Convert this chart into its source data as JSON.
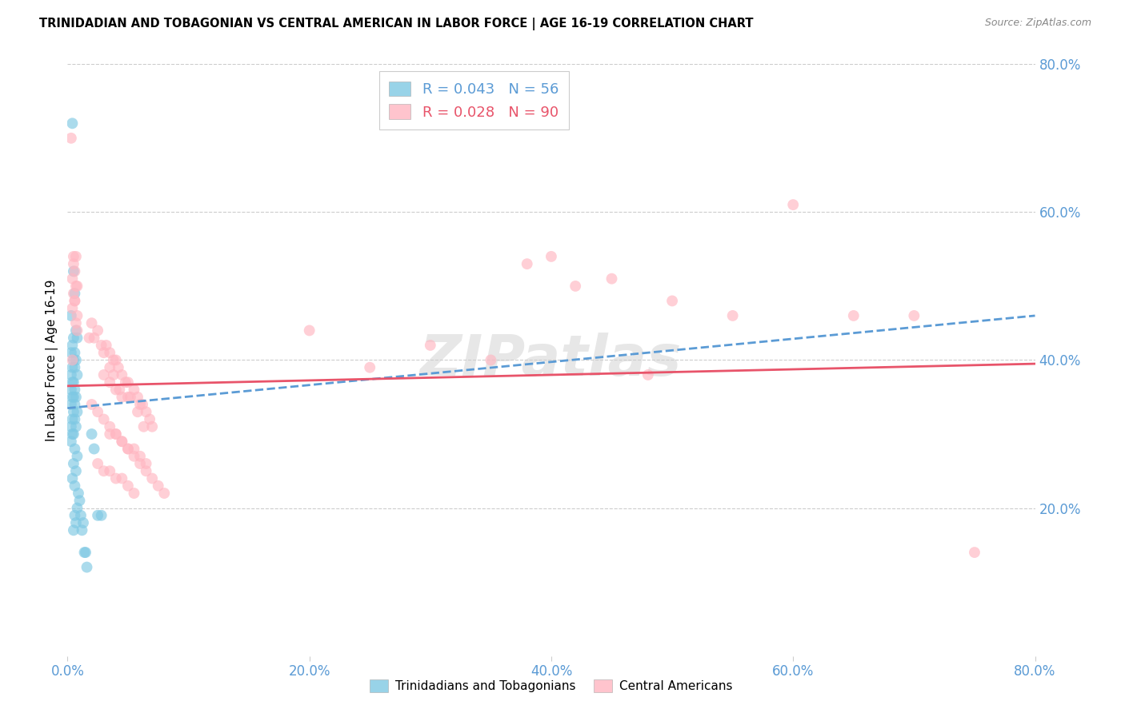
{
  "title": "TRINIDADIAN AND TOBAGONIAN VS CENTRAL AMERICAN IN LABOR FORCE | AGE 16-19 CORRELATION CHART",
  "source": "Source: ZipAtlas.com",
  "ylabel": "In Labor Force | Age 16-19",
  "xlim": [
    0.0,
    0.8
  ],
  "ylim": [
    0.0,
    0.8
  ],
  "xtick_labels": [
    "0.0%",
    "20.0%",
    "40.0%",
    "60.0%",
    "80.0%"
  ],
  "xtick_values": [
    0.0,
    0.2,
    0.4,
    0.6,
    0.8
  ],
  "ytick_labels_right": [
    "80.0%",
    "60.0%",
    "40.0%",
    "20.0%"
  ],
  "ytick_values_right": [
    0.8,
    0.6,
    0.4,
    0.2
  ],
  "grid_color": "#cccccc",
  "background_color": "#ffffff",
  "blue_color": "#7ec8e3",
  "pink_color": "#ffb6c1",
  "blue_line_color": "#5b9bd5",
  "pink_line_color": "#e8546a",
  "blue_R": 0.043,
  "blue_N": 56,
  "pink_R": 0.028,
  "pink_N": 90,
  "blue_points_x": [
    0.004,
    0.005,
    0.006,
    0.003,
    0.007,
    0.005,
    0.008,
    0.004,
    0.006,
    0.003,
    0.007,
    0.005,
    0.004,
    0.006,
    0.003,
    0.008,
    0.005,
    0.004,
    0.006,
    0.003,
    0.007,
    0.005,
    0.004,
    0.006,
    0.003,
    0.008,
    0.005,
    0.004,
    0.006,
    0.003,
    0.007,
    0.005,
    0.004,
    0.003,
    0.006,
    0.008,
    0.005,
    0.007,
    0.004,
    0.006,
    0.009,
    0.01,
    0.008,
    0.011,
    0.007,
    0.012,
    0.006,
    0.013,
    0.005,
    0.014,
    0.015,
    0.016,
    0.02,
    0.022,
    0.025,
    0.028
  ],
  "blue_points_y": [
    0.72,
    0.52,
    0.49,
    0.46,
    0.44,
    0.43,
    0.43,
    0.42,
    0.41,
    0.41,
    0.4,
    0.4,
    0.39,
    0.39,
    0.38,
    0.38,
    0.37,
    0.37,
    0.36,
    0.36,
    0.35,
    0.35,
    0.35,
    0.34,
    0.34,
    0.33,
    0.33,
    0.32,
    0.32,
    0.31,
    0.31,
    0.3,
    0.3,
    0.29,
    0.28,
    0.27,
    0.26,
    0.25,
    0.24,
    0.23,
    0.22,
    0.21,
    0.2,
    0.19,
    0.18,
    0.17,
    0.19,
    0.18,
    0.17,
    0.14,
    0.14,
    0.12,
    0.3,
    0.28,
    0.19,
    0.19
  ],
  "pink_points_x": [
    0.003,
    0.005,
    0.006,
    0.008,
    0.004,
    0.007,
    0.005,
    0.006,
    0.004,
    0.008,
    0.007,
    0.005,
    0.006,
    0.004,
    0.008,
    0.007,
    0.02,
    0.025,
    0.022,
    0.018,
    0.028,
    0.032,
    0.035,
    0.03,
    0.038,
    0.04,
    0.035,
    0.042,
    0.045,
    0.038,
    0.048,
    0.05,
    0.043,
    0.055,
    0.058,
    0.052,
    0.06,
    0.062,
    0.065,
    0.058,
    0.068,
    0.07,
    0.063,
    0.035,
    0.04,
    0.045,
    0.05,
    0.055,
    0.06,
    0.065,
    0.025,
    0.03,
    0.035,
    0.04,
    0.045,
    0.05,
    0.055,
    0.03,
    0.035,
    0.04,
    0.045,
    0.05,
    0.02,
    0.025,
    0.03,
    0.035,
    0.04,
    0.045,
    0.05,
    0.055,
    0.06,
    0.065,
    0.07,
    0.075,
    0.08,
    0.3,
    0.35,
    0.4,
    0.45,
    0.5,
    0.55,
    0.6,
    0.38,
    0.42,
    0.48,
    0.65,
    0.2,
    0.25,
    0.7,
    0.75
  ],
  "pink_points_y": [
    0.7,
    0.54,
    0.48,
    0.44,
    0.4,
    0.54,
    0.53,
    0.52,
    0.51,
    0.5,
    0.5,
    0.49,
    0.48,
    0.47,
    0.46,
    0.45,
    0.45,
    0.44,
    0.43,
    0.43,
    0.42,
    0.42,
    0.41,
    0.41,
    0.4,
    0.4,
    0.39,
    0.39,
    0.38,
    0.38,
    0.37,
    0.37,
    0.36,
    0.36,
    0.35,
    0.35,
    0.34,
    0.34,
    0.33,
    0.33,
    0.32,
    0.31,
    0.31,
    0.3,
    0.3,
    0.29,
    0.28,
    0.28,
    0.27,
    0.26,
    0.26,
    0.25,
    0.25,
    0.24,
    0.24,
    0.23,
    0.22,
    0.38,
    0.37,
    0.36,
    0.35,
    0.35,
    0.34,
    0.33,
    0.32,
    0.31,
    0.3,
    0.29,
    0.28,
    0.27,
    0.26,
    0.25,
    0.24,
    0.23,
    0.22,
    0.42,
    0.4,
    0.54,
    0.51,
    0.48,
    0.46,
    0.61,
    0.53,
    0.5,
    0.38,
    0.46,
    0.44,
    0.39,
    0.46,
    0.14
  ],
  "blue_line_y_start": 0.335,
  "blue_line_y_end": 0.46,
  "pink_line_y_start": 0.365,
  "pink_line_y_end": 0.395
}
